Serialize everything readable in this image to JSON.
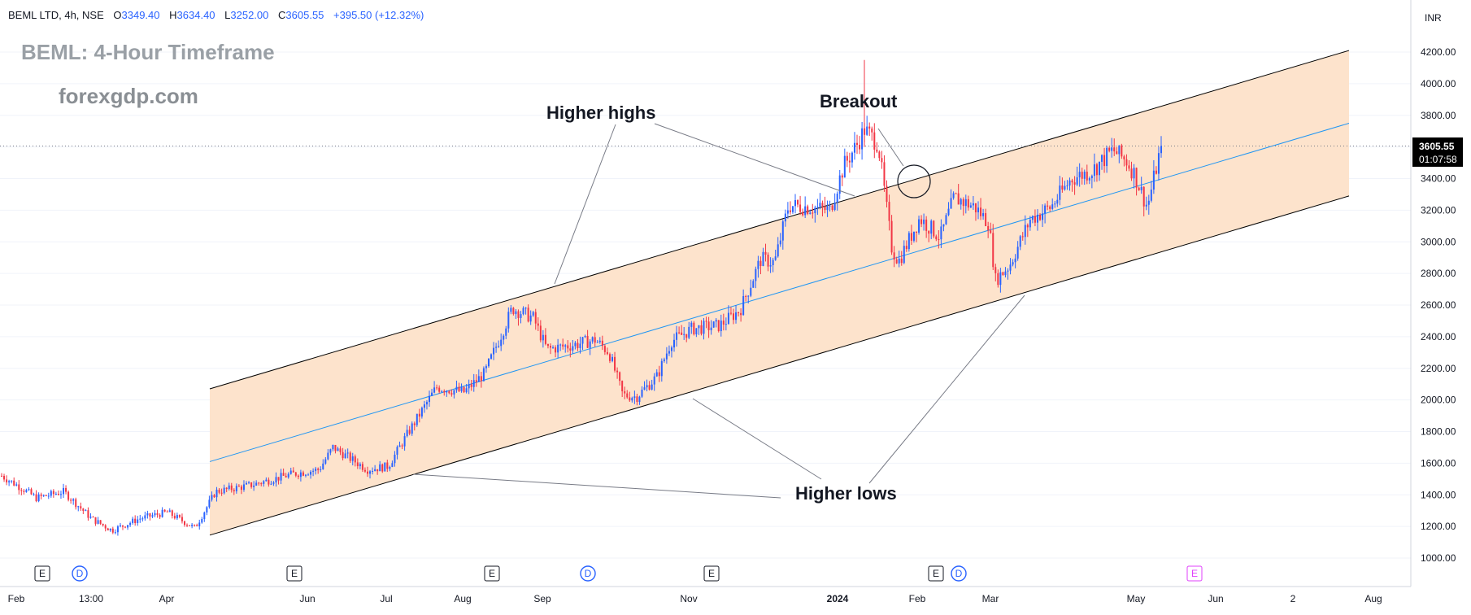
{
  "header": {
    "symbol": "BEML LTD, 4h, NSE",
    "open_label": "O",
    "open": "3349.40",
    "high_label": "H",
    "high": "3634.40",
    "low_label": "L",
    "low": "3252.00",
    "close_label": "C",
    "close": "3605.55",
    "change": "+395.50 (+12.32%)"
  },
  "overlay": {
    "title": "BEML: 4-Hour Timeframe",
    "brand": "forexgdp.com"
  },
  "currency": "INR",
  "price_tag": {
    "price": "3605.55",
    "countdown": "01:07:58"
  },
  "colors": {
    "up": "#2962ff",
    "down": "#f23645",
    "channel_fill": "#fde3cc",
    "channel_border": "#000000",
    "midline": "#2196f3",
    "earnings": "#131722",
    "earnings_future": "#e040fb"
  },
  "annotations": {
    "higher_highs": "Higher highs",
    "higher_lows": "Higher lows",
    "breakout": "Breakout"
  },
  "chart_data": {
    "type": "candlestick",
    "y_ticks": [
      "1000.00",
      "1200.00",
      "1400.00",
      "1600.00",
      "1800.00",
      "2000.00",
      "2200.00",
      "2400.00",
      "2600.00",
      "2800.00",
      "3000.00",
      "3200.00",
      "3400.00",
      "3600.00",
      "3800.00",
      "4000.00",
      "4200.00"
    ],
    "y_range": [
      820,
      4400
    ],
    "x_ticks": [
      "Feb",
      "13:00",
      "Apr",
      "Jun",
      "Jul",
      "Aug",
      "Sep",
      "Nov",
      "2024",
      "Feb",
      "Mar",
      "May",
      "Jun",
      "2",
      "Aug"
    ],
    "last_price": 3605.55,
    "channel": {
      "upper": [
        [
          "Apr",
          2070
        ],
        [
          "Aug",
          4210
        ]
      ],
      "lower": [
        [
          "Apr",
          1145
        ],
        [
          "Aug",
          3290
        ]
      ],
      "mid": [
        [
          "Apr",
          1610
        ],
        [
          "Aug",
          3750
        ]
      ]
    },
    "events": [
      {
        "label": "E",
        "at": "Feb"
      },
      {
        "label": "D",
        "at": "13:00"
      },
      {
        "label": "E",
        "at": "Jun"
      },
      {
        "label": "E",
        "at": "Aug"
      },
      {
        "label": "D",
        "at": "Sep"
      },
      {
        "label": "E",
        "at": "Nov"
      },
      {
        "label": "E",
        "at": "Feb"
      },
      {
        "label": "D",
        "at": "Feb"
      },
      {
        "label": "E",
        "at": "Jun"
      }
    ],
    "price_path": [
      [
        0,
        1520
      ],
      [
        0.03,
        1440
      ],
      [
        0.05,
        1380
      ],
      [
        0.09,
        1420
      ],
      [
        0.13,
        1250
      ],
      [
        0.16,
        1175
      ],
      [
        0.2,
        1250
      ],
      [
        0.24,
        1290
      ],
      [
        0.28,
        1190
      ],
      [
        0.31,
        1420
      ],
      [
        0.36,
        1460
      ],
      [
        0.42,
        1530
      ],
      [
        0.46,
        1560
      ],
      [
        0.48,
        1700
      ],
      [
        0.53,
        1560
      ],
      [
        0.56,
        1580
      ],
      [
        0.59,
        1800
      ],
      [
        0.63,
        2080
      ],
      [
        0.67,
        2050
      ],
      [
        0.7,
        2170
      ],
      [
        0.74,
        2580
      ],
      [
        0.77,
        2520
      ],
      [
        0.79,
        2320
      ],
      [
        0.83,
        2350
      ],
      [
        0.86,
        2380
      ],
      [
        0.88,
        2300
      ],
      [
        0.9,
        2030
      ],
      [
        0.92,
        2020
      ],
      [
        0.95,
        2150
      ],
      [
        0.97,
        2370
      ],
      [
        1.0,
        2450
      ],
      [
        1.04,
        2470
      ],
      [
        1.07,
        2570
      ],
      [
        1.1,
        2890
      ],
      [
        1.12,
        2870
      ],
      [
        1.14,
        3230
      ],
      [
        1.17,
        3220
      ],
      [
        1.2,
        3200
      ],
      [
        1.22,
        3480
      ],
      [
        1.24,
        3620
      ],
      [
        1.25,
        3710
      ],
      [
        1.27,
        3620
      ],
      [
        1.29,
        2950
      ],
      [
        1.3,
        2880
      ],
      [
        1.33,
        3150
      ],
      [
        1.36,
        3030
      ],
      [
        1.38,
        3280
      ],
      [
        1.41,
        3220
      ],
      [
        1.43,
        3120
      ],
      [
        1.44,
        2760
      ],
      [
        1.46,
        2850
      ],
      [
        1.49,
        3140
      ],
      [
        1.52,
        3220
      ],
      [
        1.55,
        3400
      ],
      [
        1.58,
        3450
      ],
      [
        1.61,
        3580
      ],
      [
        1.63,
        3510
      ],
      [
        1.64,
        3440
      ],
      [
        1.66,
        3220
      ],
      [
        1.68,
        3605.55
      ]
    ]
  }
}
